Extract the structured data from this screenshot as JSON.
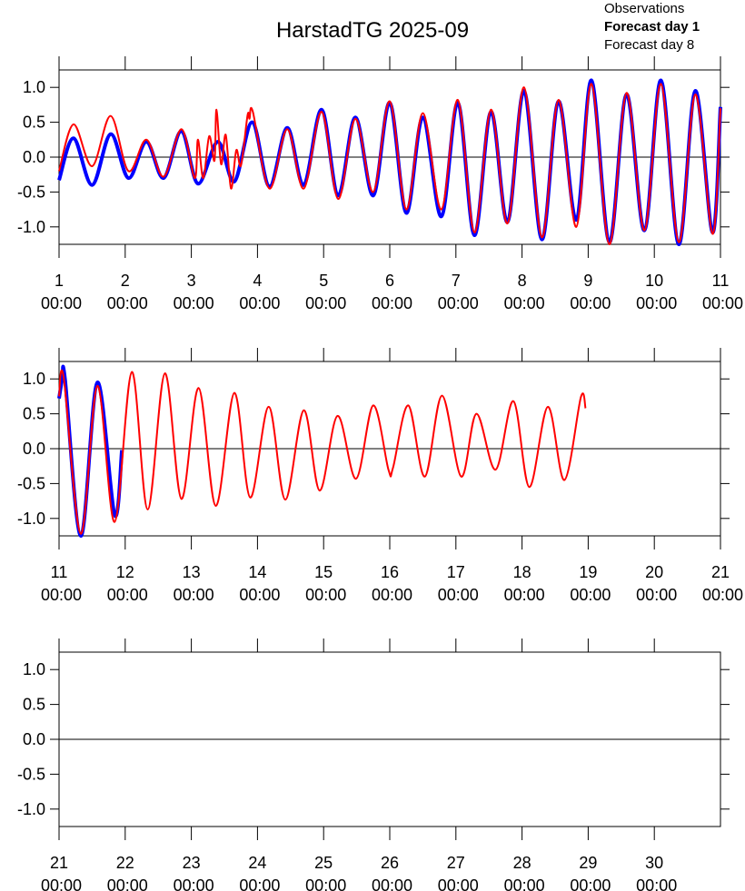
{
  "chart_data": [
    {
      "type": "line",
      "title": "HarstadTG 2025-09",
      "xlim": [
        1,
        11
      ],
      "xticks": [
        {
          "value": 1,
          "label": "1 00:00"
        },
        {
          "value": 2,
          "label": "2 00:00"
        },
        {
          "value": 3,
          "label": "3 00:00"
        },
        {
          "value": 4,
          "label": "4 00:00"
        },
        {
          "value": 5,
          "label": "5 00:00"
        },
        {
          "value": 6,
          "label": "6 00:00"
        },
        {
          "value": 7,
          "label": "7 00:00"
        },
        {
          "value": 8,
          "label": "8 00:00"
        },
        {
          "value": 9,
          "label": "9 00:00"
        },
        {
          "value": 10,
          "label": "10 00:00"
        },
        {
          "value": 11,
          "label": "11 00:00"
        }
      ],
      "ylim": [
        -1.25,
        1.25
      ],
      "yticks": [
        {
          "value": -1,
          "label": "-1.0"
        },
        {
          "value": -0.5,
          "label": "-0.5"
        },
        {
          "value": 0,
          "label": "0.0"
        },
        {
          "value": 0.5,
          "label": "0.5"
        },
        {
          "value": 1,
          "label": "1.0"
        }
      ],
      "zero_line": true,
      "series": [
        {
          "name": "Observations",
          "color": "#000000",
          "x": [],
          "values": []
        },
        {
          "name": "Forecast day 1",
          "color": "#0000ff",
          "x": [
            1.0,
            1.22,
            1.5,
            1.78,
            2.05,
            2.32,
            2.58,
            2.85,
            3.1,
            3.4,
            3.65,
            3.92,
            4.18,
            4.45,
            4.7,
            4.97,
            5.22,
            5.48,
            5.75,
            6.0,
            6.25,
            6.5,
            6.78,
            7.03,
            7.28,
            7.53,
            7.78,
            8.03,
            8.3,
            8.55,
            8.82,
            9.05,
            9.32,
            9.58,
            9.85,
            10.1,
            10.37,
            10.62,
            10.88,
            11.0
          ],
          "values": [
            -0.33,
            0.27,
            -0.4,
            0.33,
            -0.3,
            0.22,
            -0.3,
            0.37,
            -0.38,
            0.22,
            -0.35,
            0.5,
            -0.42,
            0.42,
            -0.4,
            0.68,
            -0.55,
            0.57,
            -0.55,
            0.78,
            -0.8,
            0.57,
            -0.85,
            0.78,
            -1.12,
            0.65,
            -0.93,
            0.95,
            -1.18,
            0.8,
            -0.9,
            1.1,
            -1.22,
            0.9,
            -1.05,
            1.1,
            -1.25,
            0.95,
            -1.08,
            0.72
          ]
        },
        {
          "name": "Forecast day 8",
          "color": "#ff0000",
          "x": [
            1.0,
            1.22,
            1.5,
            1.78,
            2.05,
            2.32,
            2.58,
            2.85,
            3.05,
            3.1,
            3.18,
            3.27,
            3.35,
            3.38,
            3.45,
            3.52,
            3.6,
            3.68,
            3.75,
            3.85,
            3.88,
            3.93,
            4.18,
            4.45,
            4.7,
            4.97,
            5.22,
            5.48,
            5.75,
            6.0,
            6.25,
            6.5,
            6.78,
            7.03,
            7.28,
            7.53,
            7.78,
            8.03,
            8.3,
            8.55,
            8.82,
            9.05,
            9.32,
            9.58,
            9.85,
            10.1,
            10.37,
            10.62,
            10.88,
            11.0
          ],
          "values": [
            -0.2,
            0.47,
            -0.13,
            0.59,
            -0.2,
            0.25,
            -0.28,
            0.4,
            -0.3,
            0.25,
            -0.3,
            0.3,
            -0.05,
            0.68,
            -0.1,
            0.32,
            -0.45,
            0.1,
            -0.12,
            0.6,
            0.55,
            0.65,
            -0.45,
            0.4,
            -0.45,
            0.65,
            -0.6,
            0.55,
            -0.5,
            0.8,
            -0.75,
            0.63,
            -0.75,
            0.82,
            -1.08,
            0.68,
            -0.95,
            1.0,
            -1.15,
            0.82,
            -1.0,
            1.05,
            -1.25,
            0.92,
            -1.05,
            1.05,
            -1.22,
            0.9,
            -1.1,
            0.7
          ]
        }
      ]
    },
    {
      "type": "line",
      "xlim": [
        11,
        21
      ],
      "xticks": [
        {
          "value": 11,
          "label": "11 00:00"
        },
        {
          "value": 12,
          "label": "12 00:00"
        },
        {
          "value": 13,
          "label": "13 00:00"
        },
        {
          "value": 14,
          "label": "14 00:00"
        },
        {
          "value": 15,
          "label": "15 00:00"
        },
        {
          "value": 16,
          "label": "16 00:00"
        },
        {
          "value": 17,
          "label": "17 00:00"
        },
        {
          "value": 18,
          "label": "18 00:00"
        },
        {
          "value": 19,
          "label": "19 00:00"
        },
        {
          "value": 20,
          "label": "20 00:00"
        },
        {
          "value": 21,
          "label": "21 00:00"
        }
      ],
      "ylim": [
        -1.25,
        1.25
      ],
      "yticks": [
        {
          "value": -1,
          "label": "-1.0"
        },
        {
          "value": -0.5,
          "label": "-0.5"
        },
        {
          "value": 0,
          "label": "0.0"
        },
        {
          "value": 0.5,
          "label": "0.5"
        },
        {
          "value": 1,
          "label": "1.0"
        }
      ],
      "zero_line": true,
      "series": [
        {
          "color": "#0000ff",
          "x": [
            11.0,
            11.05,
            11.09,
            11.33,
            11.58,
            11.84,
            11.95
          ],
          "values": [
            0.72,
            1.0,
            1.0,
            -1.25,
            0.95,
            -0.95,
            -0.02
          ]
        },
        {
          "color": "#ff0000",
          "x": [
            11.0,
            11.07,
            11.33,
            11.58,
            11.84,
            12.1,
            12.34,
            12.6,
            12.85,
            13.11,
            13.37,
            13.65,
            13.89,
            14.17,
            14.42,
            14.7,
            14.94,
            15.21,
            15.49,
            15.75,
            15.98,
            16.05,
            16.28,
            16.53,
            16.79,
            17.08,
            17.31,
            17.6,
            17.87,
            18.11,
            18.39,
            18.64,
            18.89,
            18.96
          ],
          "values": [
            0.75,
            1.02,
            -1.22,
            0.9,
            -1.05,
            1.1,
            -0.87,
            1.08,
            -0.72,
            0.87,
            -0.82,
            0.8,
            -0.7,
            0.6,
            -0.73,
            0.55,
            -0.6,
            0.47,
            -0.43,
            0.62,
            -0.3,
            -0.27,
            0.62,
            -0.4,
            0.76,
            -0.4,
            0.5,
            -0.3,
            0.68,
            -0.55,
            0.6,
            -0.45,
            0.74,
            0.58
          ]
        }
      ]
    },
    {
      "type": "line",
      "xlim": [
        21,
        31
      ],
      "xticks": [
        {
          "value": 21,
          "label": "21 00:00"
        },
        {
          "value": 22,
          "label": "22 00:00"
        },
        {
          "value": 23,
          "label": "23 00:00"
        },
        {
          "value": 24,
          "label": "24 00:00"
        },
        {
          "value": 25,
          "label": "25 00:00"
        },
        {
          "value": 26,
          "label": "26 00:00"
        },
        {
          "value": 27,
          "label": "27 00:00"
        },
        {
          "value": 28,
          "label": "28 00:00"
        },
        {
          "value": 29,
          "label": "29 00:00"
        },
        {
          "value": 30,
          "label": "30 00:00"
        }
      ],
      "ylim": [
        -1.25,
        1.25
      ],
      "yticks": [
        {
          "value": -1,
          "label": "-1.0"
        },
        {
          "value": -0.5,
          "label": "-0.5"
        },
        {
          "value": 0,
          "label": "0.0"
        },
        {
          "value": 0.5,
          "label": "0.5"
        },
        {
          "value": 1,
          "label": "1.0"
        }
      ],
      "zero_line": true,
      "series": []
    }
  ]
}
